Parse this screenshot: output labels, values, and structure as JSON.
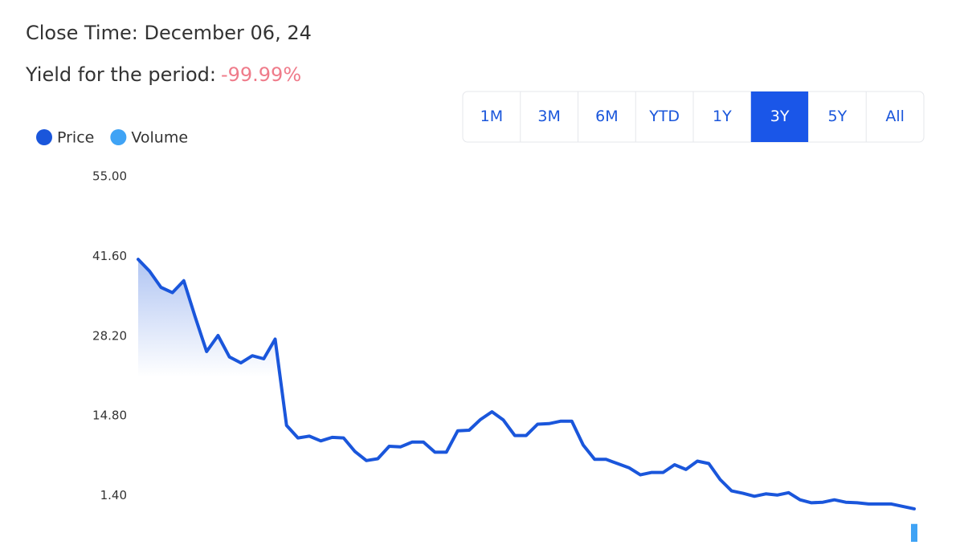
{
  "header": {
    "close_time": "Close Time: December 06, 24",
    "yield_label": "Yield for the period:",
    "yield_value": "-99.99%"
  },
  "range_buttons": {
    "labels": [
      "1M",
      "3M",
      "6M",
      "YTD",
      "1Y",
      "3Y",
      "5Y",
      "All"
    ],
    "selected": "3Y"
  },
  "chart_data": {
    "type": "line",
    "series": [
      {
        "name": "Price",
        "color": "#1a56db",
        "values": [
          41.1,
          39.1,
          36.4,
          35.5,
          37.5,
          31.4,
          25.6,
          28.3,
          24.7,
          23.7,
          24.9,
          24.4,
          27.7,
          13.2,
          11.1,
          11.4,
          10.6,
          11.2,
          11.1,
          8.8,
          7.3,
          7.6,
          9.7,
          9.6,
          10.4,
          10.4,
          8.7,
          8.7,
          12.3,
          12.4,
          14.2,
          15.5,
          14.1,
          11.5,
          11.5,
          13.4,
          13.5,
          13.9,
          13.9,
          9.9,
          7.5,
          7.5,
          6.8,
          6.1,
          4.9,
          5.3,
          5.3,
          6.6,
          5.8,
          7.2,
          6.8,
          4.1,
          2.2,
          1.8,
          1.3,
          1.7,
          1.5,
          1.9,
          0.7,
          0.2,
          0.3,
          0.7,
          0.3,
          0.2,
          0.0,
          0.0,
          0.0,
          -0.4,
          -0.8
        ]
      },
      {
        "name": "Volume",
        "color": "#3fa3f5",
        "axis": "y2",
        "values": [
          null,
          null,
          null,
          null,
          null,
          null,
          null,
          null,
          null,
          null,
          null,
          null,
          null,
          null,
          null,
          null,
          null,
          null,
          null,
          null,
          null,
          null,
          null,
          null,
          null,
          null,
          null,
          null,
          null,
          null,
          null,
          null,
          null,
          null,
          null,
          null,
          null,
          null,
          null,
          null,
          null,
          null,
          null,
          null,
          null,
          null,
          null,
          null,
          null,
          null,
          null,
          null,
          null,
          null,
          null,
          null,
          null,
          null,
          null,
          null,
          null,
          null,
          null,
          null,
          null,
          null,
          null,
          null,
          1
        ]
      }
    ],
    "ylim": [
      -5,
      55
    ],
    "yticks": [
      {
        "value": 55,
        "label": "55.00"
      },
      {
        "value": 41.6,
        "label": "41.60"
      },
      {
        "value": 28.2,
        "label": "28.20"
      },
      {
        "value": 14.8,
        "label": "14.80"
      },
      {
        "value": 1.4,
        "label": "1.40"
      }
    ],
    "y2lim": [
      0,
      20
    ]
  }
}
